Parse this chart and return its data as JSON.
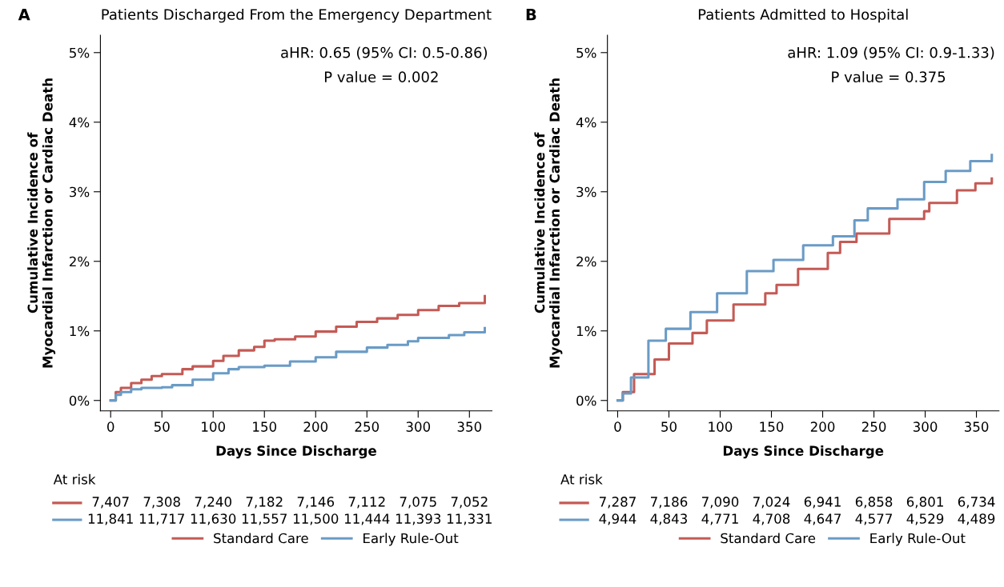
{
  "chart_data": [
    {
      "type": "step",
      "title": "Patients Discharged From the Emergency Department",
      "xlabel": "Days Since Discharge",
      "ylabel": "Cumulative Incidence of\nMyocardial Infarction or Cardiac Death",
      "xlim": [
        -10,
        372
      ],
      "xticks": [
        0,
        50,
        100,
        150,
        200,
        250,
        300,
        350
      ],
      "ylim": [
        -0.15,
        5.25
      ],
      "yticks": [
        {
          "value": 0,
          "label": "0%"
        },
        {
          "value": 1,
          "label": "1%"
        },
        {
          "value": 2,
          "label": "2%"
        },
        {
          "value": 3,
          "label": "3%"
        },
        {
          "value": 4,
          "label": "4%"
        },
        {
          "value": 5,
          "label": "5%"
        }
      ],
      "grid": false,
      "legend": "bottom",
      "series": [
        {
          "name": "Standard Care",
          "color": "#c45a55",
          "x": [
            0,
            5,
            10,
            20,
            30,
            40,
            50,
            70,
            80,
            100,
            110,
            125,
            140,
            150,
            160,
            180,
            200,
            220,
            240,
            260,
            280,
            300,
            320,
            340,
            365
          ],
          "values": [
            0,
            0.12,
            0.18,
            0.25,
            0.3,
            0.35,
            0.38,
            0.45,
            0.49,
            0.57,
            0.64,
            0.72,
            0.77,
            0.86,
            0.88,
            0.92,
            0.99,
            1.06,
            1.13,
            1.18,
            1.23,
            1.3,
            1.36,
            1.4,
            1.5
          ]
        },
        {
          "name": "Early Rule-Out",
          "color": "#6a9bc6",
          "x": [
            0,
            5,
            10,
            20,
            30,
            50,
            60,
            80,
            100,
            115,
            125,
            150,
            175,
            200,
            220,
            250,
            270,
            290,
            300,
            330,
            345,
            365
          ],
          "values": [
            0,
            0.08,
            0.12,
            0.16,
            0.18,
            0.19,
            0.22,
            0.3,
            0.39,
            0.45,
            0.48,
            0.5,
            0.56,
            0.62,
            0.7,
            0.76,
            0.8,
            0.85,
            0.9,
            0.94,
            0.98,
            1.04
          ]
        }
      ],
      "annotations": [
        "A",
        "aHR: 0.65 (95% CI: 0.5-0.86)",
        "P value = 0.002",
        "At risk",
        "7,407",
        "7,308",
        "7,240",
        "7,182",
        "7,146",
        "7,112",
        "7,075",
        "7,052",
        "11,841",
        "11,717",
        "11,630",
        "11,557",
        "11,500",
        "11,444",
        "11,393",
        "11,331"
      ]
    },
    {
      "type": "step",
      "title": "Patients Admitted to Hospital",
      "xlabel": "Days Since Discharge",
      "ylabel": "Cumulative Incidence of\nMyocardial Infarction or Cardiac Death",
      "xlim": [
        -10,
        372
      ],
      "xticks": [
        0,
        50,
        100,
        150,
        200,
        250,
        300,
        350
      ],
      "ylim": [
        -0.15,
        5.25
      ],
      "yticks": [
        {
          "value": 0,
          "label": "0%"
        },
        {
          "value": 1,
          "label": "1%"
        },
        {
          "value": 2,
          "label": "2%"
        },
        {
          "value": 3,
          "label": "3%"
        },
        {
          "value": 4,
          "label": "4%"
        },
        {
          "value": 5,
          "label": "5%"
        }
      ],
      "grid": false,
      "legend": "bottom",
      "series": [
        {
          "name": "Standard Care",
          "color": "#c45a55",
          "x": [
            0,
            5,
            16,
            36,
            50,
            73,
            87,
            113,
            144,
            155,
            176,
            205,
            217,
            233,
            265,
            299,
            304,
            331,
            349,
            365
          ],
          "values": [
            0,
            0.12,
            0.38,
            0.59,
            0.82,
            0.97,
            1.15,
            1.38,
            1.54,
            1.66,
            1.89,
            2.12,
            2.28,
            2.4,
            2.61,
            2.72,
            2.84,
            3.02,
            3.12,
            3.19
          ]
        },
        {
          "name": "Early Rule-Out",
          "color": "#6a9bc6",
          "x": [
            0,
            5,
            13,
            30,
            47,
            71,
            97,
            126,
            152,
            181,
            210,
            231,
            244,
            273,
            299,
            320,
            344,
            365
          ],
          "values": [
            0,
            0.1,
            0.33,
            0.86,
            1.03,
            1.27,
            1.54,
            1.86,
            2.02,
            2.23,
            2.36,
            2.59,
            2.76,
            2.89,
            3.14,
            3.3,
            3.44,
            3.53
          ]
        }
      ],
      "annotations": [
        "B",
        "aHR: 1.09 (95% CI: 0.9-1.33)",
        "P value = 0.375",
        "At risk",
        "7,287",
        "7,186",
        "7,090",
        "7,024",
        "6,941",
        "6,858",
        "6,801",
        "6,734",
        "4,944",
        "4,843",
        "4,771",
        "4,708",
        "4,647",
        "4,577",
        "4,529",
        "4,489"
      ]
    }
  ]
}
